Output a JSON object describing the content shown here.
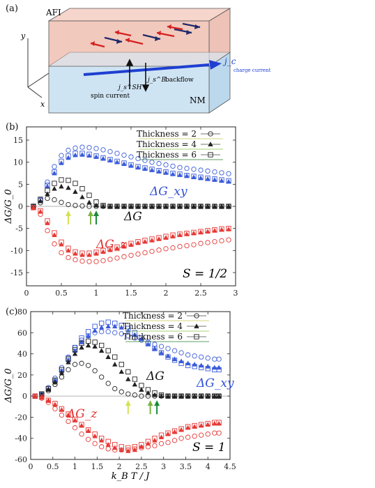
{
  "panel_a": {
    "tag": "(a)",
    "afi_label": "AFI",
    "nm_label": "NM",
    "jc_label": "j_c",
    "charge_current_label": "charge current",
    "spin_current_label": "spin current",
    "backflow_label": "backflow",
    "jsh_label": "j_s^SH",
    "jb_label": "j_s^B",
    "axes": [
      "y",
      "z",
      "x"
    ],
    "colors": {
      "afi_fill": "#f2c9bd",
      "nm_fill": "#cfe4f3",
      "spin_red": "#d62020",
      "spin_navy": "#1f2a6b",
      "arrow_blue": "#1f3fd1"
    }
  },
  "chart_data": [
    {
      "tag": "(b)",
      "type": "scatter",
      "title": "",
      "xlabel": "",
      "ylabel": "ΔG/G_0",
      "xlim": [
        0,
        3
      ],
      "ylim": [
        -18,
        18
      ],
      "xticks": [
        0,
        0.5,
        1,
        1.5,
        2,
        2.5,
        3
      ],
      "yticks": [
        -15,
        -10,
        -5,
        0,
        5,
        10,
        15
      ],
      "xtick_labels": [
        "0",
        "0.5",
        "1",
        "1.5",
        "2",
        "2.5",
        "3"
      ],
      "ytick_labels": [
        "-15",
        "-10",
        "-5",
        "0",
        "5",
        "10",
        "15"
      ],
      "annotation": "S = 1/2",
      "series_labels": {
        "xy": "ΔG_xy",
        "g": "ΔG",
        "z": "ΔG_z"
      },
      "legend": [
        "Thickness = 2",
        "Thickness = 4",
        "Thickness = 6"
      ],
      "legend_line_colors": [
        "#c9c95a",
        "#8bc34a",
        "#2e7d32"
      ],
      "markers_arrows": [
        {
          "x": 0.6,
          "color": "#d4e157"
        },
        {
          "x": 0.92,
          "color": "#7cb342"
        },
        {
          "x": 1.0,
          "color": "#1b8a3a"
        }
      ],
      "x": [
        0.1,
        0.2,
        0.3,
        0.4,
        0.5,
        0.6,
        0.7,
        0.8,
        0.9,
        1.0,
        1.1,
        1.2,
        1.3,
        1.4,
        1.5,
        1.6,
        1.7,
        1.8,
        1.9,
        2.0,
        2.1,
        2.2,
        2.3,
        2.4,
        2.5,
        2.6,
        2.7,
        2.8,
        2.9
      ],
      "series": [
        {
          "group": "xy",
          "thickness": 2,
          "marker": "circle",
          "color": "#3a5bd9",
          "values": [
            0.0,
            1.5,
            5.5,
            9.0,
            11.5,
            12.7,
            13.2,
            13.4,
            13.3,
            13.1,
            12.8,
            12.4,
            12.0,
            11.6,
            11.2,
            10.8,
            10.4,
            10.0,
            9.7,
            9.4,
            9.1,
            8.8,
            8.6,
            8.4,
            8.2,
            8.0,
            7.8,
            7.6,
            7.4
          ]
        },
        {
          "group": "xy",
          "thickness": 4,
          "marker": "triangle",
          "color": "#3a5bd9",
          "values": [
            0.0,
            1.2,
            4.5,
            7.5,
            9.8,
            11.0,
            11.6,
            11.7,
            11.5,
            11.2,
            10.8,
            10.4,
            10.0,
            9.6,
            9.2,
            8.8,
            8.5,
            8.2,
            7.9,
            7.6,
            7.3,
            7.1,
            6.9,
            6.6,
            6.4,
            6.2,
            6.0,
            5.8,
            5.6
          ]
        },
        {
          "group": "xy",
          "thickness": 6,
          "marker": "square",
          "color": "#3a5bd9",
          "values": [
            0.0,
            1.3,
            4.8,
            7.8,
            10.2,
            11.4,
            12.0,
            12.0,
            11.8,
            11.4,
            11.0,
            10.6,
            10.2,
            9.8,
            9.4,
            9.0,
            8.7,
            8.4,
            8.1,
            7.8,
            7.5,
            7.3,
            7.0,
            6.8,
            6.6,
            6.4,
            6.2,
            6.0,
            5.8
          ]
        },
        {
          "group": "g",
          "thickness": 2,
          "marker": "circle",
          "color": "#222222",
          "values": [
            0.0,
            0.8,
            1.8,
            1.5,
            0.9,
            0.4,
            0.2,
            0.1,
            0.0,
            0.0,
            0.0,
            0.0,
            0.0,
            0.0,
            0.0,
            0.0,
            0.0,
            0.0,
            0.0,
            0.0,
            0.0,
            0.0,
            0.0,
            0.0,
            0.0,
            0.0,
            0.0,
            0.0,
            0.0
          ]
        },
        {
          "group": "g",
          "thickness": 4,
          "marker": "triangle",
          "color": "#222222",
          "values": [
            0.0,
            1.2,
            2.8,
            4.0,
            4.5,
            4.2,
            3.3,
            2.1,
            0.9,
            0.2,
            0.0,
            0.0,
            0.0,
            0.0,
            0.0,
            0.0,
            0.0,
            0.0,
            0.0,
            0.0,
            0.0,
            0.0,
            0.0,
            0.0,
            0.0,
            0.0,
            0.0,
            0.0,
            0.0
          ]
        },
        {
          "group": "g",
          "thickness": 6,
          "marker": "square",
          "color": "#222222",
          "values": [
            0.0,
            1.6,
            3.6,
            5.2,
            6.0,
            5.9,
            5.2,
            4.0,
            2.5,
            1.0,
            0.2,
            0.0,
            0.0,
            0.0,
            0.0,
            0.0,
            0.0,
            0.0,
            0.0,
            0.0,
            0.0,
            0.0,
            0.0,
            0.0,
            0.0,
            0.0,
            0.0,
            0.0,
            0.0
          ]
        },
        {
          "group": "z",
          "thickness": 2,
          "marker": "circle",
          "color": "#e53935",
          "values": [
            -0.3,
            -1.8,
            -5.5,
            -8.5,
            -10.5,
            -11.6,
            -12.1,
            -12.4,
            -12.5,
            -12.5,
            -12.3,
            -12.0,
            -11.7,
            -11.4,
            -11.1,
            -10.8,
            -10.5,
            -10.2,
            -9.9,
            -9.6,
            -9.4,
            -9.1,
            -8.9,
            -8.7,
            -8.4,
            -8.2,
            -8.0,
            -7.8,
            -7.6
          ]
        },
        {
          "group": "z",
          "thickness": 4,
          "marker": "triangle",
          "color": "#e53935",
          "values": [
            -0.3,
            -1.2,
            -3.8,
            -6.5,
            -8.6,
            -10.0,
            -10.7,
            -11.0,
            -11.0,
            -10.7,
            -10.3,
            -9.9,
            -9.5,
            -9.1,
            -8.7,
            -8.3,
            -8.0,
            -7.7,
            -7.4,
            -7.1,
            -6.8,
            -6.5,
            -6.3,
            -6.1,
            -5.9,
            -5.7,
            -5.5,
            -5.3,
            -5.2
          ]
        },
        {
          "group": "z",
          "thickness": 6,
          "marker": "square",
          "color": "#e53935",
          "values": [
            -0.3,
            -1.0,
            -3.3,
            -6.0,
            -8.1,
            -9.5,
            -10.3,
            -10.6,
            -10.6,
            -10.4,
            -10.0,
            -9.6,
            -9.2,
            -8.8,
            -8.4,
            -8.0,
            -7.7,
            -7.4,
            -7.1,
            -6.8,
            -6.5,
            -6.3,
            -6.1,
            -5.9,
            -5.7,
            -5.5,
            -5.3,
            -5.1,
            -5.0
          ]
        }
      ]
    },
    {
      "tag": "(c)",
      "type": "scatter",
      "title": "",
      "xlabel": "k_B T / J",
      "ylabel": "ΔG/G_0",
      "xlim": [
        0,
        4.5
      ],
      "ylim": [
        -60,
        80
      ],
      "xticks": [
        0,
        0.5,
        1,
        1.5,
        2,
        2.5,
        3,
        3.5,
        4,
        4.5
      ],
      "yticks": [
        -60,
        -40,
        -20,
        0,
        20,
        40,
        60,
        80
      ],
      "xtick_labels": [
        "0",
        "0.5",
        "1",
        "1.5",
        "2",
        "2.5",
        "3",
        "3.5",
        "4",
        "4.5"
      ],
      "ytick_labels": [
        "-60",
        "-40",
        "-20",
        "0",
        "20",
        "40",
        "60",
        "80"
      ],
      "annotation": "S = 1",
      "series_labels": {
        "xy": "ΔG_xy",
        "g": "ΔG",
        "z": "ΔG_z"
      },
      "legend": [
        "Thickness = 2",
        "Thickness = 4",
        "Thickness = 6"
      ],
      "legend_line_colors": [
        "#c9c95a",
        "#8bc34a",
        "#2e7d32"
      ],
      "markers_arrows": [
        {
          "x": 2.2,
          "color": "#d4e157"
        },
        {
          "x": 2.7,
          "color": "#7cb342"
        },
        {
          "x": 2.85,
          "color": "#1b8a3a"
        }
      ],
      "x": [
        0.1,
        0.25,
        0.4,
        0.55,
        0.7,
        0.85,
        1.0,
        1.15,
        1.3,
        1.45,
        1.6,
        1.75,
        1.9,
        2.05,
        2.2,
        2.35,
        2.5,
        2.65,
        2.8,
        2.95,
        3.1,
        3.25,
        3.4,
        3.55,
        3.7,
        3.85,
        4.0,
        4.15,
        4.25
      ],
      "series": [
        {
          "group": "xy",
          "thickness": 2,
          "marker": "circle",
          "color": "#3a5bd9",
          "values": [
            0,
            2,
            8,
            17,
            27,
            37,
            46,
            53,
            57,
            60,
            61,
            61,
            60,
            59,
            57,
            55,
            53,
            51,
            49,
            47,
            45,
            43,
            41,
            39,
            38,
            37,
            36,
            35,
            35
          ]
        },
        {
          "group": "xy",
          "thickness": 4,
          "marker": "triangle",
          "color": "#3a5bd9",
          "values": [
            0,
            2,
            7,
            15,
            24,
            34,
            43,
            51,
            57,
            62,
            65,
            66,
            66,
            65,
            62,
            58,
            54,
            49,
            45,
            41,
            38,
            35,
            33,
            31,
            30,
            29,
            28,
            27,
            27
          ]
        },
        {
          "group": "xy",
          "thickness": 6,
          "marker": "square",
          "color": "#3a5bd9",
          "values": [
            0,
            2,
            7,
            15,
            25,
            36,
            46,
            55,
            61,
            66,
            69,
            70,
            69,
            67,
            64,
            60,
            55,
            50,
            45,
            41,
            37,
            34,
            31,
            29,
            28,
            27,
            26,
            25,
            25
          ]
        },
        {
          "group": "g",
          "thickness": 2,
          "marker": "circle",
          "color": "#222222",
          "values": [
            0,
            1,
            5,
            11,
            18,
            25,
            30,
            31,
            29,
            24,
            18,
            12,
            7,
            4,
            2,
            1,
            0,
            0,
            0,
            0,
            0,
            0,
            0,
            0,
            0,
            0,
            0,
            0,
            0
          ]
        },
        {
          "group": "g",
          "thickness": 4,
          "marker": "triangle",
          "color": "#222222",
          "values": [
            0,
            1,
            6,
            13,
            22,
            32,
            40,
            46,
            48,
            47,
            43,
            37,
            30,
            23,
            16,
            11,
            6,
            3,
            1,
            0,
            0,
            0,
            0,
            0,
            0,
            0,
            0,
            0,
            0
          ]
        },
        {
          "group": "g",
          "thickness": 6,
          "marker": "square",
          "color": "#222222",
          "values": [
            0,
            2,
            7,
            15,
            25,
            35,
            44,
            50,
            52,
            51,
            48,
            43,
            37,
            30,
            23,
            16,
            10,
            6,
            3,
            1,
            0,
            0,
            0,
            0,
            0,
            0,
            0,
            0,
            0
          ]
        },
        {
          "group": "z",
          "thickness": 2,
          "marker": "circle",
          "color": "#e53935",
          "values": [
            0,
            -2,
            -6,
            -12,
            -18,
            -24,
            -30,
            -36,
            -41,
            -45,
            -48,
            -50,
            -51,
            -51,
            -51,
            -50,
            -49,
            -48,
            -47,
            -45,
            -44,
            -42,
            -40,
            -39,
            -38,
            -37,
            -36,
            -35,
            -35
          ]
        },
        {
          "group": "z",
          "thickness": 4,
          "marker": "triangle",
          "color": "#e53935",
          "values": [
            0,
            -1,
            -4,
            -8,
            -13,
            -18,
            -23,
            -28,
            -33,
            -38,
            -42,
            -46,
            -49,
            -51,
            -52,
            -51,
            -48,
            -45,
            -42,
            -39,
            -36,
            -34,
            -32,
            -30,
            -29,
            -28,
            -27,
            -26,
            -26
          ]
        },
        {
          "group": "z",
          "thickness": 6,
          "marker": "square",
          "color": "#e53935",
          "values": [
            0,
            -1,
            -4,
            -7,
            -12,
            -17,
            -22,
            -27,
            -32,
            -36,
            -40,
            -43,
            -46,
            -48,
            -49,
            -48,
            -46,
            -43,
            -40,
            -37,
            -35,
            -33,
            -31,
            -29,
            -28,
            -27,
            -26,
            -25,
            -25
          ]
        }
      ]
    }
  ]
}
